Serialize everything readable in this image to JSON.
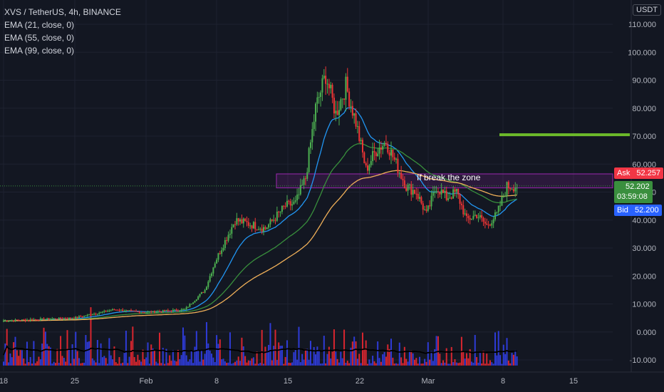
{
  "legend": {
    "symbol": "XVS / TetherUS, 4h, BINANCE",
    "ema21": "EMA (21, close, 0)",
    "ema55": "EMA (55, close, 0)",
    "ema99": "EMA (99, close, 0)"
  },
  "axis": {
    "currency": "USDT",
    "y_ticks": [
      "110.000",
      "100.000",
      "90.000",
      "80.000",
      "70.000",
      "60.000",
      "50.000",
      "40.000",
      "30.000",
      "20.000",
      "10.000",
      "0.000",
      "-10.000"
    ],
    "x_ticks": [
      "18",
      "25",
      "Feb",
      "8",
      "15",
      "22",
      "Mar",
      "8",
      "15"
    ]
  },
  "tags": {
    "ask_label": "Ask",
    "ask_value": "52.257",
    "last_value": "52.202",
    "countdown": "03:59:08",
    "bid_label": "Bid",
    "bid_value": "52.200"
  },
  "annotation": "If break the zone",
  "colors": {
    "background": "#131722",
    "up": "#4caf50",
    "down": "#ef3535",
    "ema21": "#2196f3",
    "ema55": "#388e3c",
    "ema99": "#f0b059",
    "zone": "#9c27b0",
    "target": "#6bb82a",
    "ask": "#f23645",
    "bid": "#2962ff"
  },
  "chart_data": {
    "type": "candlestick",
    "ylim": [
      -12,
      112
    ],
    "zone": [
      51.5,
      56.5
    ],
    "target_level": 70.5,
    "last_price": 52.202,
    "anchors": [
      {
        "x": "Jan 18",
        "close": 4
      },
      {
        "x": "Jan 25",
        "close": 5
      },
      {
        "x": "Jan 29",
        "close": 8
      },
      {
        "x": "Feb 1",
        "close": 7
      },
      {
        "x": "Feb 5",
        "close": 8
      },
      {
        "x": "Feb 7",
        "close": 15
      },
      {
        "x": "Feb 8",
        "close": 25
      },
      {
        "x": "Feb 10",
        "close": 40
      },
      {
        "x": "Feb 13",
        "close": 37
      },
      {
        "x": "Feb 15",
        "close": 45
      },
      {
        "x": "Feb 16",
        "close": 46
      },
      {
        "x": "Feb 17",
        "close": 55
      },
      {
        "x": "Feb 18",
        "close": 80
      },
      {
        "x": "Feb 19",
        "close": 92
      },
      {
        "x": "Feb 20",
        "close": 78
      },
      {
        "x": "Feb 21",
        "close": 88
      },
      {
        "x": "Feb 22",
        "close": 75
      },
      {
        "x": "Feb 23",
        "close": 58
      },
      {
        "x": "Feb 24",
        "close": 65
      },
      {
        "x": "Feb 25",
        "close": 68
      },
      {
        "x": "Feb 26",
        "close": 60
      },
      {
        "x": "Feb 27",
        "close": 52
      },
      {
        "x": "Feb 28",
        "close": 50
      },
      {
        "x": "Mar 1",
        "close": 42
      },
      {
        "x": "Mar 2",
        "close": 52
      },
      {
        "x": "Mar 3",
        "close": 48
      },
      {
        "x": "Mar 4",
        "close": 50
      },
      {
        "x": "Mar 5",
        "close": 40
      },
      {
        "x": "Mar 6",
        "close": 42
      },
      {
        "x": "Mar 7",
        "close": 38
      },
      {
        "x": "Mar 8",
        "close": 42
      },
      {
        "x": "Mar 9",
        "close": 52
      },
      {
        "x": "Mar 10",
        "close": 52.2
      }
    ],
    "volume_ylim": [
      -12,
      12
    ],
    "volume_base": -12
  }
}
